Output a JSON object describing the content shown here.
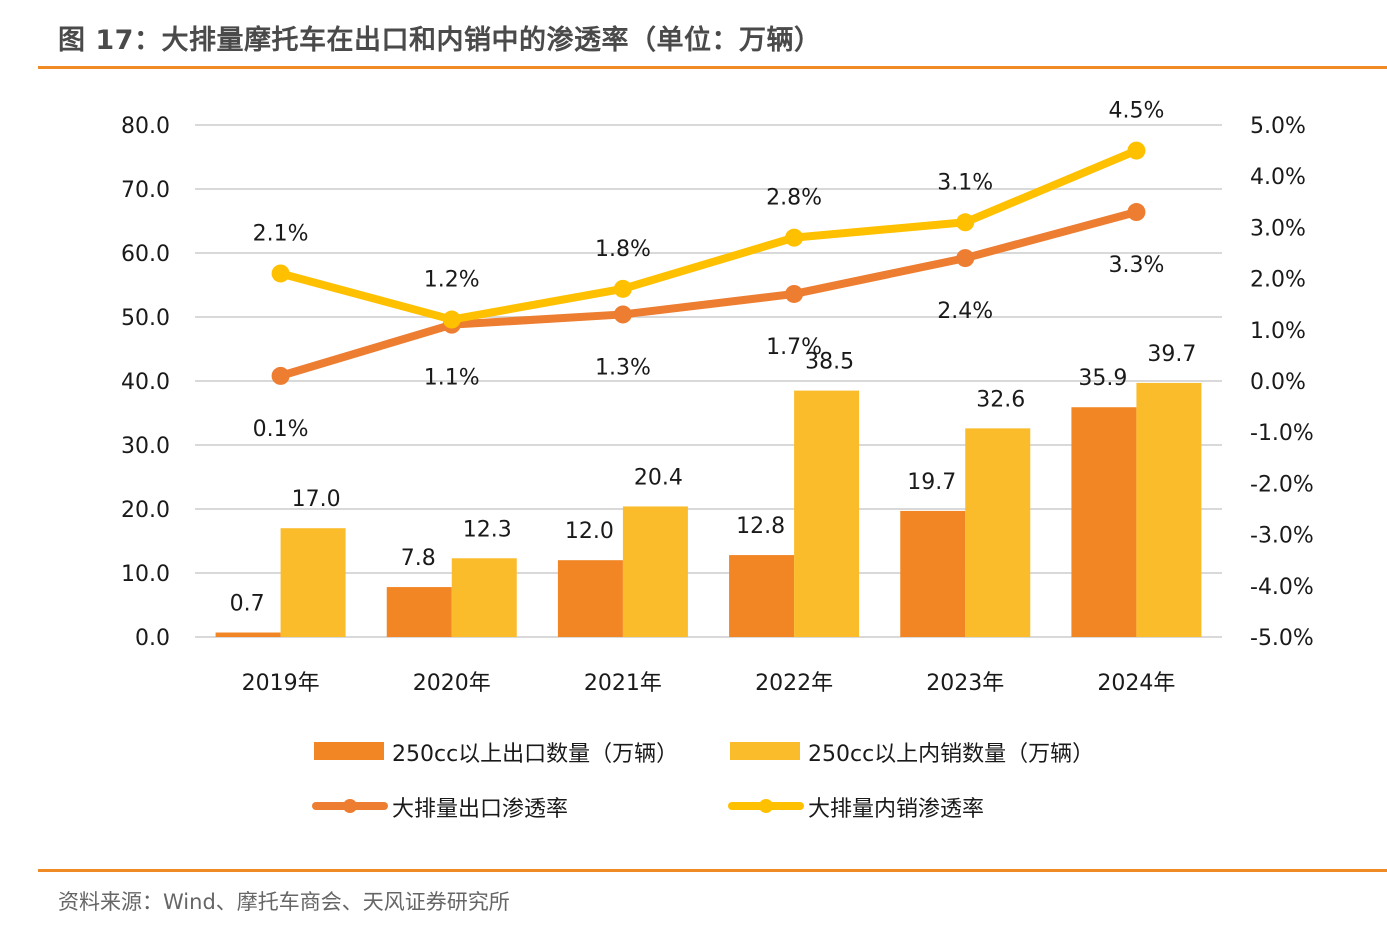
{
  "header": {
    "title": "图 17：大排量摩托车在出口和内销中的渗透率（单位：万辆）"
  },
  "footer": {
    "source": "资料来源：Wind、摩托车商会、天风证券研究所"
  },
  "colors": {
    "export_bar": "#f28524",
    "domestic_bar": "#fbbc2c",
    "export_line": "#ed7d31",
    "domestic_line": "#ffc000",
    "rule": "#f08a24",
    "grid": "#d9d9d9"
  },
  "chart_data": {
    "type": "bar+line",
    "title": "大排量摩托车在出口和内销中的渗透率（单位：万辆）",
    "categories": [
      "2019年",
      "2020年",
      "2021年",
      "2022年",
      "2023年",
      "2024年"
    ],
    "series": [
      {
        "name": "250cc以上出口数量（万辆）",
        "type": "bar",
        "axis": "left",
        "values": [
          0.7,
          7.8,
          12.0,
          12.8,
          19.7,
          35.9
        ],
        "labels": [
          "0.7",
          "7.8",
          "12.0",
          "12.8",
          "19.7",
          "35.9"
        ]
      },
      {
        "name": "250cc以上内销数量（万辆）",
        "type": "bar",
        "axis": "left",
        "values": [
          17.0,
          12.3,
          20.4,
          38.5,
          32.6,
          39.7
        ],
        "labels": [
          "17.0",
          "12.3",
          "20.4",
          "38.5",
          "32.6",
          "39.7"
        ]
      },
      {
        "name": "大排量出口渗透率",
        "type": "line",
        "axis": "right",
        "values": [
          0.1,
          1.1,
          1.3,
          1.7,
          2.4,
          3.3
        ],
        "labels": [
          "0.1%",
          "1.1%",
          "1.3%",
          "1.7%",
          "2.4%",
          "3.3%"
        ]
      },
      {
        "name": "大排量内销渗透率",
        "type": "line",
        "axis": "right",
        "values": [
          2.1,
          1.2,
          1.8,
          2.8,
          3.1,
          4.5
        ],
        "labels": [
          "2.1%",
          "1.2%",
          "1.8%",
          "2.8%",
          "3.1%",
          "4.5%"
        ]
      }
    ],
    "left_axis": {
      "min": 0,
      "max": 80,
      "step": 10,
      "tick_labels": [
        "0.0",
        "10.0",
        "20.0",
        "30.0",
        "40.0",
        "50.0",
        "60.0",
        "70.0",
        "80.0"
      ]
    },
    "right_axis": {
      "min": -5,
      "max": 5,
      "step": 1,
      "tick_labels": [
        "-5.0%",
        "-4.0%",
        "-3.0%",
        "-2.0%",
        "-1.0%",
        "0.0%",
        "1.0%",
        "2.0%",
        "3.0%",
        "4.0%",
        "5.0%"
      ]
    },
    "grid": true,
    "legend_position": "bottom"
  }
}
